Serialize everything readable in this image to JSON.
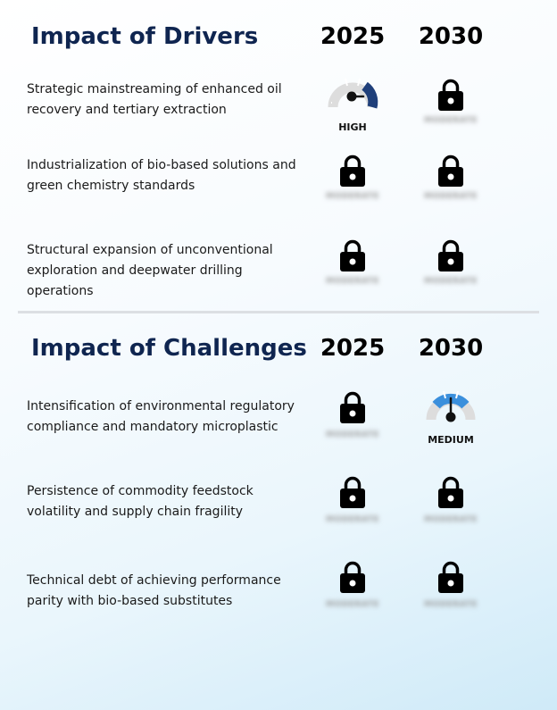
{
  "drivers": {
    "title": "Impact of Drivers",
    "year_1": "2025",
    "year_2": "2030",
    "rows": [
      {
        "label": "Strategic mainstreaming of enhanced oil recovery and tertiary extraction",
        "y2025": {
          "type": "gauge",
          "level": "HIGH",
          "color": "#1f3f7a"
        },
        "y2030": {
          "type": "locked",
          "blurred_text": "MODERATE"
        }
      },
      {
        "label": "Industrialization of bio-based solutions and green chemistry standards",
        "y2025": {
          "type": "locked",
          "blurred_text": "MODERATE"
        },
        "y2030": {
          "type": "locked",
          "blurred_text": "MODERATE"
        }
      },
      {
        "label": "Structural expansion of unconventional exploration and deepwater drilling operations",
        "y2025": {
          "type": "locked",
          "blurred_text": "MODERATE"
        },
        "y2030": {
          "type": "locked",
          "blurred_text": "MODERATE"
        }
      }
    ]
  },
  "challenges": {
    "title": "Impact of Challenges",
    "year_1": "2025",
    "year_2": "2030",
    "rows": [
      {
        "label": "Intensification of environmental regulatory compliance and mandatory microplastic",
        "y2025": {
          "type": "locked",
          "blurred_text": "MODERATE"
        },
        "y2030": {
          "type": "gauge",
          "level": "MEDIUM",
          "color": "#3a8fdc"
        }
      },
      {
        "label": "Persistence of commodity feedstock volatility and supply chain fragility",
        "y2025": {
          "type": "locked",
          "blurred_text": "MODERATE"
        },
        "y2030": {
          "type": "locked",
          "blurred_text": "MODERATE"
        }
      },
      {
        "label": "Technical debt of achieving performance parity with bio-based substitutes",
        "y2025": {
          "type": "locked",
          "blurred_text": "MODERATE"
        },
        "y2030": {
          "type": "locked",
          "blurred_text": "MODERATE"
        }
      }
    ]
  }
}
